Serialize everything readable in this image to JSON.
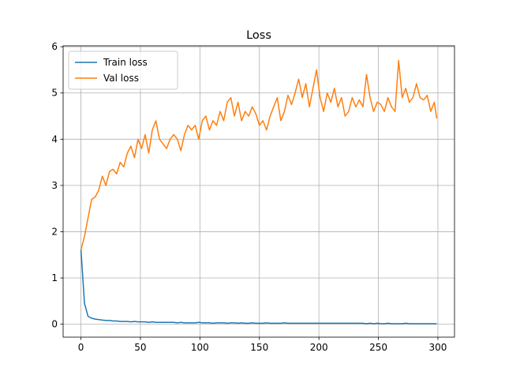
{
  "chart_data": {
    "type": "line",
    "title": "Loss",
    "x": [
      0,
      3,
      6,
      9,
      12,
      15,
      18,
      21,
      24,
      27,
      30,
      33,
      36,
      39,
      42,
      45,
      48,
      51,
      54,
      57,
      60,
      63,
      66,
      69,
      72,
      75,
      78,
      81,
      84,
      87,
      90,
      93,
      96,
      99,
      102,
      105,
      108,
      111,
      114,
      117,
      120,
      123,
      126,
      129,
      132,
      135,
      138,
      141,
      144,
      147,
      150,
      153,
      156,
      159,
      162,
      165,
      168,
      171,
      174,
      177,
      180,
      183,
      186,
      189,
      192,
      195,
      198,
      201,
      204,
      207,
      210,
      213,
      216,
      219,
      222,
      225,
      228,
      231,
      234,
      237,
      240,
      243,
      246,
      249,
      252,
      255,
      258,
      261,
      264,
      267,
      270,
      273,
      276,
      279,
      282,
      285,
      288,
      291,
      294,
      297,
      299
    ],
    "series": [
      {
        "name": "Train loss",
        "color": "#1f77b4",
        "values": [
          1.62,
          0.45,
          0.17,
          0.13,
          0.11,
          0.1,
          0.09,
          0.08,
          0.08,
          0.07,
          0.07,
          0.06,
          0.06,
          0.06,
          0.05,
          0.06,
          0.05,
          0.05,
          0.05,
          0.04,
          0.05,
          0.04,
          0.04,
          0.04,
          0.04,
          0.04,
          0.04,
          0.03,
          0.04,
          0.03,
          0.03,
          0.03,
          0.03,
          0.04,
          0.03,
          0.03,
          0.03,
          0.02,
          0.03,
          0.03,
          0.03,
          0.02,
          0.03,
          0.03,
          0.02,
          0.03,
          0.02,
          0.02,
          0.03,
          0.02,
          0.02,
          0.02,
          0.03,
          0.02,
          0.02,
          0.02,
          0.02,
          0.03,
          0.02,
          0.02,
          0.02,
          0.02,
          0.02,
          0.02,
          0.02,
          0.02,
          0.02,
          0.02,
          0.02,
          0.02,
          0.02,
          0.02,
          0.02,
          0.02,
          0.02,
          0.02,
          0.02,
          0.02,
          0.02,
          0.02,
          0.01,
          0.02,
          0.01,
          0.02,
          0.01,
          0.01,
          0.02,
          0.01,
          0.01,
          0.01,
          0.01,
          0.02,
          0.01,
          0.01,
          0.01,
          0.01,
          0.01,
          0.01,
          0.01,
          0.01,
          0.01
        ]
      },
      {
        "name": "Val loss",
        "color": "#ff7f0e",
        "values": [
          1.6,
          1.9,
          2.3,
          2.7,
          2.75,
          2.9,
          3.2,
          3.0,
          3.3,
          3.35,
          3.25,
          3.5,
          3.4,
          3.7,
          3.85,
          3.6,
          4.0,
          3.8,
          4.1,
          3.7,
          4.2,
          4.4,
          4.0,
          3.9,
          3.8,
          4.0,
          4.1,
          4.0,
          3.75,
          4.1,
          4.3,
          4.2,
          4.3,
          4.0,
          4.4,
          4.5,
          4.2,
          4.4,
          4.3,
          4.6,
          4.4,
          4.8,
          4.9,
          4.5,
          4.8,
          4.4,
          4.6,
          4.5,
          4.7,
          4.55,
          4.3,
          4.4,
          4.2,
          4.5,
          4.7,
          4.9,
          4.4,
          4.6,
          4.95,
          4.75,
          5.0,
          5.3,
          4.9,
          5.2,
          4.7,
          5.1,
          5.5,
          4.9,
          4.6,
          5.0,
          4.8,
          5.1,
          4.7,
          4.9,
          4.5,
          4.6,
          4.9,
          4.7,
          4.85,
          4.7,
          5.4,
          4.9,
          4.6,
          4.8,
          4.75,
          4.6,
          4.9,
          4.7,
          4.6,
          5.7,
          4.9,
          5.1,
          4.8,
          4.9,
          5.2,
          4.9,
          4.85,
          4.95,
          4.6,
          4.8,
          4.45
        ]
      }
    ],
    "xlim": [
      -14.95,
      313.95
    ],
    "ylim": [
      -0.28,
      6.02
    ],
    "xticks": [
      0,
      50,
      100,
      150,
      200,
      250,
      300
    ],
    "yticks": [
      0,
      1,
      2,
      3,
      4,
      5,
      6
    ],
    "grid": true,
    "legend": "upper left"
  }
}
